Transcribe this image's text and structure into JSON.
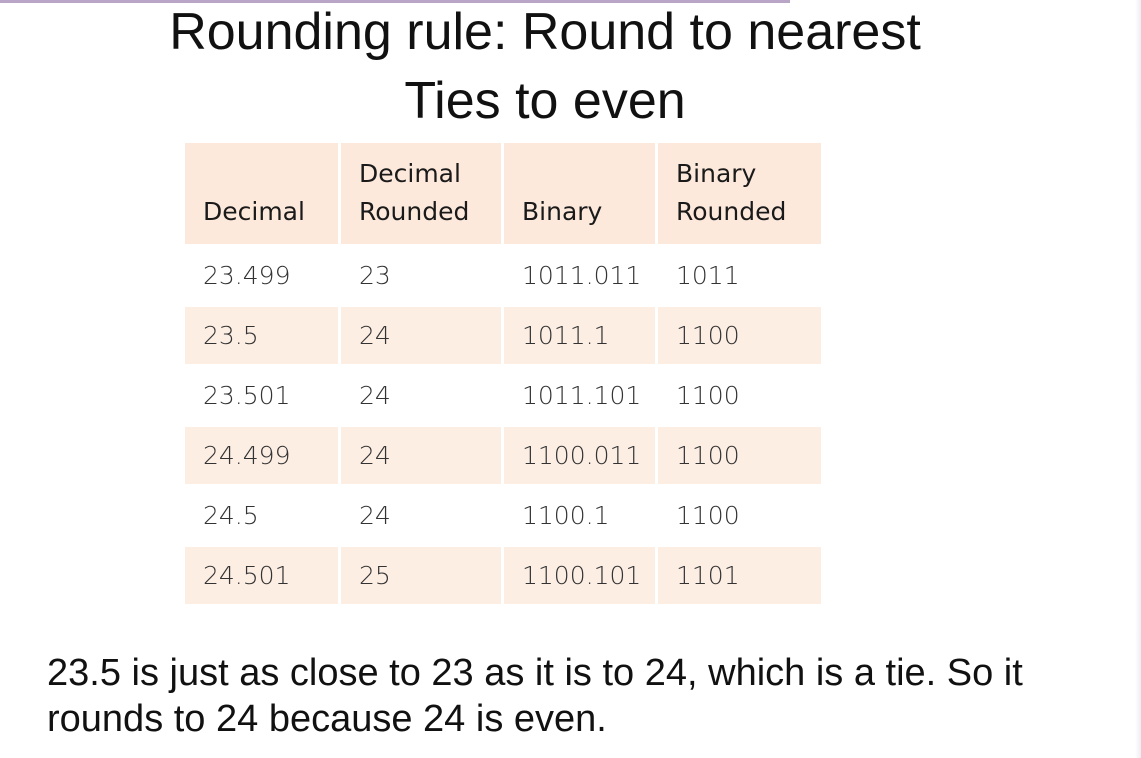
{
  "title": {
    "line1": "Rounding rule: Round to nearest",
    "line2": "Ties to even"
  },
  "table": {
    "headers": [
      {
        "line1": "",
        "line2": "Decimal"
      },
      {
        "line1": "Decimal",
        "line2": "Rounded"
      },
      {
        "line1": "",
        "line2": "Binary"
      },
      {
        "line1": "Binary",
        "line2": "Rounded"
      }
    ],
    "rows": [
      [
        "23.499",
        "23",
        "1011.011",
        "1011"
      ],
      [
        "23.5",
        "24",
        "1011.1",
        "1100"
      ],
      [
        "23.501",
        "24",
        "1011.101",
        "1100"
      ],
      [
        "24.499",
        "24",
        "1100.011",
        "1100"
      ],
      [
        "24.5",
        "24",
        "1100.1",
        "1100"
      ],
      [
        "24.501",
        "25",
        "1100.101",
        "1101"
      ]
    ]
  },
  "footnote": "23.5 is just as close to 23 as it is to 24, which is a tie. So it rounds to 24 because 24 is even.",
  "colors": {
    "header_bg": "#fde9dc",
    "stripe_bg": "#fdeee4",
    "accent_rule": "#b9a6c6"
  }
}
